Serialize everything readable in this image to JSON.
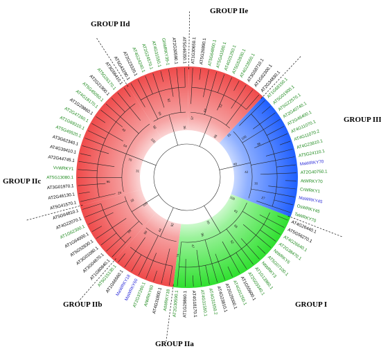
{
  "figure": {
    "groups": [
      {
        "id": "I",
        "label": "GROUP I",
        "color": "#3ee03e"
      },
      {
        "id": "IIa",
        "label": "GROUP IIa",
        "color": "#f24a4a"
      },
      {
        "id": "IIb",
        "label": "GROUP IIb",
        "color": "#f24a4a"
      },
      {
        "id": "IIc",
        "label": "GROUP IIc",
        "color": "#f24a4a"
      },
      {
        "id": "IId",
        "label": "GROUP IId",
        "color": "#f24a4a"
      },
      {
        "id": "IIe",
        "label": "GROUP IIe",
        "color": "#f24a4a"
      },
      {
        "id": "III",
        "label": "GROUP III",
        "color": "#1f5fff"
      }
    ],
    "label_colors": {
      "arabidopsis": "#000000",
      "other": "#1e8a1e",
      "mango": "#2a2ad8"
    },
    "leaves": [
      {
        "name": "AT4G26440.1",
        "group": "I",
        "kind": "arabidopsis"
      },
      {
        "name": "AT5G56270.1",
        "group": "I",
        "kind": "arabidopsis"
      },
      {
        "name": "AT4G26640.1",
        "group": "I",
        "kind": "other"
      },
      {
        "name": "AT2G38470.1",
        "group": "I",
        "kind": "other"
      },
      {
        "name": "NtWRKY6",
        "group": "I",
        "kind": "other"
      },
      {
        "name": "AT5G07100.1",
        "group": "I",
        "kind": "other"
      },
      {
        "name": "NtWRKY3",
        "group": "I",
        "kind": "other"
      },
      {
        "name": "AT1G13960.1",
        "group": "I",
        "kind": "other"
      },
      {
        "name": "AT2G03340.1",
        "group": "I",
        "kind": "other"
      },
      {
        "name": "AT1G55600.1",
        "group": "I",
        "kind": "arabidopsis"
      },
      {
        "name": "AT4G01250.1",
        "group": "I",
        "kind": "other"
      },
      {
        "name": "AT2G25000.1",
        "group": "I",
        "kind": "arabidopsis"
      },
      {
        "name": "AT4G23810.1",
        "group": "I",
        "kind": "arabidopsis"
      },
      {
        "name": "AT4G31550.2",
        "group": "I",
        "kind": "other"
      },
      {
        "name": "AT4G31550.1",
        "group": "I",
        "kind": "other"
      },
      {
        "name": "AT4G18170.1",
        "group": "I",
        "kind": "arabidopsis"
      },
      {
        "name": "AT1G29860.1",
        "group": "I",
        "kind": "arabidopsis"
      },
      {
        "name": "AT2G30590.1",
        "group": "I",
        "kind": "other"
      },
      {
        "name": "AtWRKY18",
        "group": "IIa",
        "kind": "other"
      },
      {
        "name": "AT4G31800.1",
        "group": "IIa",
        "kind": "arabidopsis"
      },
      {
        "name": "AtWRKY60",
        "group": "IIa",
        "kind": "other"
      },
      {
        "name": "AT2G37260.1",
        "group": "IIa",
        "kind": "other"
      },
      {
        "name": "MaWRKY60",
        "group": "IIa",
        "kind": "mango"
      },
      {
        "name": "MaWRKY18",
        "group": "IIa",
        "kind": "mango"
      },
      {
        "name": "AT1G66560.1",
        "group": "IIa",
        "kind": "arabidopsis"
      },
      {
        "name": "AT5G15130.1",
        "group": "IIa",
        "kind": "other"
      },
      {
        "name": "AT1G80840.1",
        "group": "IIb",
        "kind": "arabidopsis"
      },
      {
        "name": "AT3G04670.1",
        "group": "IIb",
        "kind": "arabidopsis"
      },
      {
        "name": "AT3G01080.1",
        "group": "IIb",
        "kind": "arabidopsis"
      },
      {
        "name": "AT5G52830.1",
        "group": "IIb",
        "kind": "arabidopsis"
      },
      {
        "name": "AT1G64000.1",
        "group": "IIb",
        "kind": "arabidopsis"
      },
      {
        "name": "AT1G62300.1",
        "group": "IIb",
        "kind": "other"
      },
      {
        "name": "AT4G22070.1",
        "group": "IIb",
        "kind": "arabidopsis"
      },
      {
        "name": "AT5G64810.1",
        "group": "IIb",
        "kind": "arabidopsis"
      },
      {
        "name": "AT5G41570.1",
        "group": "IIc",
        "kind": "arabidopsis"
      },
      {
        "name": "AT2G46130.1",
        "group": "IIc",
        "kind": "arabidopsis"
      },
      {
        "name": "AT3G01970.1",
        "group": "IIc",
        "kind": "arabidopsis"
      },
      {
        "name": "AT5G13080.1",
        "group": "IIc",
        "kind": "other"
      },
      {
        "name": "VvWRKY1",
        "group": "IIc",
        "kind": "other"
      },
      {
        "name": "AT2G44745.1",
        "group": "IIc",
        "kind": "arabidopsis"
      },
      {
        "name": "AT4G39410.1",
        "group": "IIc",
        "kind": "arabidopsis"
      },
      {
        "name": "AT3G62340.1",
        "group": "IIc",
        "kind": "arabidopsis"
      },
      {
        "name": "AT5G49520.1",
        "group": "IIc",
        "kind": "other"
      },
      {
        "name": "AT1G69310.1",
        "group": "IIc",
        "kind": "other"
      },
      {
        "name": "AT2G47260.1",
        "group": "IIc",
        "kind": "other"
      },
      {
        "name": "AT1G29860.1",
        "group": "IIc",
        "kind": "arabidopsis"
      },
      {
        "name": "AT4G18170.1",
        "group": "IIc",
        "kind": "other"
      },
      {
        "name": "AT5G45050.1",
        "group": "IIc",
        "kind": "other"
      },
      {
        "name": "AT2G21900.1",
        "group": "IIc",
        "kind": "arabidopsis"
      },
      {
        "name": "AT5G26170.1",
        "group": "IIc",
        "kind": "other"
      },
      {
        "name": "AT3G56410.1",
        "group": "IIc",
        "kind": "arabidopsis"
      },
      {
        "name": "AT5G43290.1",
        "group": "IId",
        "kind": "arabidopsis"
      },
      {
        "name": "AT2G23320.1",
        "group": "IId",
        "kind": "arabidopsis"
      },
      {
        "name": "AT4G24240.1",
        "group": "IId",
        "kind": "other"
      },
      {
        "name": "AT2G24570.1",
        "group": "IId",
        "kind": "other"
      },
      {
        "name": "AT4G31550.1",
        "group": "IId",
        "kind": "other"
      },
      {
        "name": "GhWRKY39-1",
        "group": "IId",
        "kind": "other"
      },
      {
        "name": "AT2G30590.1",
        "group": "IId",
        "kind": "arabidopsis"
      },
      {
        "name": "AT5G46350.1",
        "group": "IId",
        "kind": "arabidopsis"
      },
      {
        "name": "AT1G30650.1",
        "group": "IIe",
        "kind": "arabidopsis"
      },
      {
        "name": "AT5G26890.1",
        "group": "IIe",
        "kind": "arabidopsis"
      },
      {
        "name": "AT5G64800.1",
        "group": "IIe",
        "kind": "other"
      },
      {
        "name": "AT5G41580.1",
        "group": "IIe",
        "kind": "other"
      },
      {
        "name": "AT4G01250.1",
        "group": "IIe",
        "kind": "other"
      },
      {
        "name": "AT5G52830.1",
        "group": "IIe",
        "kind": "other"
      },
      {
        "name": "AT4G23550.1",
        "group": "IIe",
        "kind": "other"
      },
      {
        "name": "AT3G58710.1",
        "group": "IIe",
        "kind": "arabidopsis"
      },
      {
        "name": "AT1G62300.1",
        "group": "IIe",
        "kind": "arabidopsis"
      },
      {
        "name": "AT2G34830.1",
        "group": "IIe",
        "kind": "arabidopsis"
      },
      {
        "name": "AT1G68150.1",
        "group": "III",
        "kind": "other"
      },
      {
        "name": "AT5G01900.1",
        "group": "III",
        "kind": "other"
      },
      {
        "name": "AT5G22570.1",
        "group": "III",
        "kind": "other"
      },
      {
        "name": "AT2G40740.1",
        "group": "III",
        "kind": "other"
      },
      {
        "name": "AT2G46400.1",
        "group": "III",
        "kind": "other"
      },
      {
        "name": "AT4G11070.1",
        "group": "III",
        "kind": "other"
      },
      {
        "name": "AT4G11070.2",
        "group": "III",
        "kind": "other"
      },
      {
        "name": "AT4G23810.1",
        "group": "III",
        "kind": "other"
      },
      {
        "name": "AT5G24110.1",
        "group": "III",
        "kind": "other"
      },
      {
        "name": "MaWRKY70",
        "group": "III",
        "kind": "mango"
      },
      {
        "name": "AT2G40750.1",
        "group": "III",
        "kind": "other"
      },
      {
        "name": "AtWRKY70",
        "group": "III",
        "kind": "other"
      },
      {
        "name": "CrWRKY1",
        "group": "III",
        "kind": "other"
      },
      {
        "name": "MaWRKY45",
        "group": "III",
        "kind": "mango"
      },
      {
        "name": "OsWRKY45",
        "group": "III",
        "kind": "other"
      },
      {
        "name": "TaWRKY70",
        "group": "III",
        "kind": "other"
      }
    ],
    "bootstrap_values": [
      "100",
      "63",
      "66",
      "52",
      "60",
      "96",
      "47",
      "74",
      "92",
      "44",
      "99",
      "84",
      "100",
      "18",
      "29",
      "96",
      "31",
      "70",
      "64",
      "43",
      "100",
      "58",
      "66",
      "82",
      "36",
      "57",
      "64",
      "52",
      "66",
      "91",
      "100",
      "38",
      "99",
      "42",
      "16",
      "27"
    ]
  }
}
